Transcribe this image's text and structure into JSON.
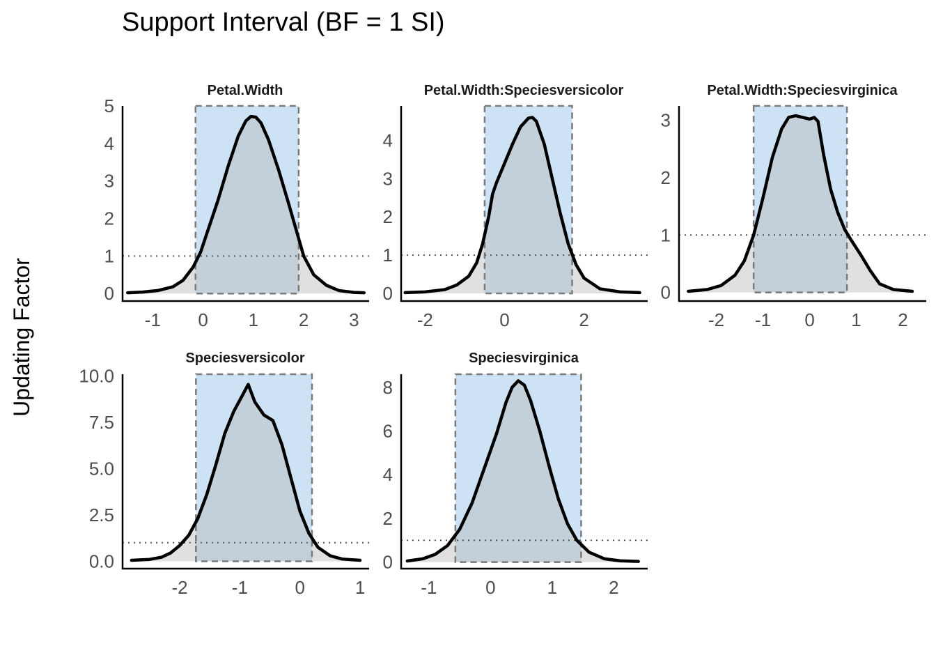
{
  "chart_data": {
    "type": "area",
    "title": "Support Interval (BF = 1 SI)",
    "ylabel": "Updating Factor",
    "xlabel": "",
    "threshold": 1,
    "colors": {
      "interval_fill": "#cde3f5",
      "interval_border": "#7a7a7a",
      "under_curve_fill": "#b4b4b4",
      "curve": "#000000",
      "threshold_line": "#555555"
    },
    "panels": [
      {
        "title": "Petal.Width",
        "xlim": [
          -1.6,
          3.3
        ],
        "ylim": [
          -0.2,
          5.0
        ],
        "xticks": [
          -1,
          0,
          1,
          2,
          3
        ],
        "yticks": [
          0,
          1,
          2,
          3,
          4,
          5
        ],
        "ytick_labels": [
          "0",
          "1",
          "2",
          "3",
          "4",
          "5"
        ],
        "interval": [
          -0.15,
          1.9
        ],
        "curve": [
          [
            -1.5,
            0.02
          ],
          [
            -1.2,
            0.04
          ],
          [
            -0.9,
            0.08
          ],
          [
            -0.6,
            0.18
          ],
          [
            -0.4,
            0.35
          ],
          [
            -0.2,
            0.7
          ],
          [
            -0.05,
            1.1
          ],
          [
            0.1,
            1.7
          ],
          [
            0.3,
            2.5
          ],
          [
            0.5,
            3.4
          ],
          [
            0.7,
            4.2
          ],
          [
            0.85,
            4.6
          ],
          [
            0.95,
            4.72
          ],
          [
            1.05,
            4.7
          ],
          [
            1.15,
            4.55
          ],
          [
            1.3,
            4.1
          ],
          [
            1.5,
            3.3
          ],
          [
            1.7,
            2.4
          ],
          [
            1.85,
            1.7
          ],
          [
            2.0,
            1.0
          ],
          [
            2.2,
            0.5
          ],
          [
            2.45,
            0.22
          ],
          [
            2.7,
            0.08
          ],
          [
            3.0,
            0.03
          ],
          [
            3.2,
            0.02
          ]
        ]
      },
      {
        "title": "Petal.Width:Speciesversicolor",
        "xlim": [
          -2.6,
          3.6
        ],
        "ylim": [
          -0.2,
          4.9
        ],
        "xticks": [
          -2,
          0,
          2
        ],
        "yticks": [
          0,
          1,
          2,
          3,
          4
        ],
        "ytick_labels": [
          "0",
          "1",
          "2",
          "3",
          "4"
        ],
        "interval": [
          -0.5,
          1.7
        ],
        "curve": [
          [
            -2.5,
            0.02
          ],
          [
            -2.0,
            0.04
          ],
          [
            -1.5,
            0.1
          ],
          [
            -1.2,
            0.22
          ],
          [
            -0.9,
            0.45
          ],
          [
            -0.7,
            0.8
          ],
          [
            -0.55,
            1.3
          ],
          [
            -0.4,
            2.0
          ],
          [
            -0.3,
            2.6
          ],
          [
            -0.2,
            2.9
          ],
          [
            0.0,
            3.4
          ],
          [
            0.2,
            3.9
          ],
          [
            0.4,
            4.35
          ],
          [
            0.6,
            4.58
          ],
          [
            0.7,
            4.6
          ],
          [
            0.8,
            4.5
          ],
          [
            1.0,
            3.9
          ],
          [
            1.2,
            3.0
          ],
          [
            1.4,
            2.1
          ],
          [
            1.6,
            1.3
          ],
          [
            1.8,
            0.75
          ],
          [
            2.0,
            0.4
          ],
          [
            2.4,
            0.12
          ],
          [
            2.9,
            0.04
          ],
          [
            3.4,
            0.02
          ]
        ]
      },
      {
        "title": "Petal.Width:Speciesvirginica",
        "xlim": [
          -2.8,
          2.5
        ],
        "ylim": [
          -0.15,
          3.25
        ],
        "xticks": [
          -2,
          -1,
          0,
          1,
          2
        ],
        "yticks": [
          0,
          1,
          2,
          3
        ],
        "ytick_labels": [
          "0",
          "1",
          "2",
          "3"
        ],
        "interval": [
          -1.2,
          0.8
        ],
        "curve": [
          [
            -2.6,
            0.02
          ],
          [
            -2.2,
            0.05
          ],
          [
            -1.9,
            0.12
          ],
          [
            -1.6,
            0.3
          ],
          [
            -1.4,
            0.55
          ],
          [
            -1.2,
            1.0
          ],
          [
            -1.0,
            1.65
          ],
          [
            -0.8,
            2.35
          ],
          [
            -0.6,
            2.85
          ],
          [
            -0.45,
            3.05
          ],
          [
            -0.3,
            3.08
          ],
          [
            -0.15,
            3.05
          ],
          [
            0.0,
            3.02
          ],
          [
            0.1,
            3.05
          ],
          [
            0.18,
            2.98
          ],
          [
            0.3,
            2.4
          ],
          [
            0.45,
            1.8
          ],
          [
            0.6,
            1.4
          ],
          [
            0.75,
            1.1
          ],
          [
            0.9,
            0.9
          ],
          [
            1.1,
            0.65
          ],
          [
            1.3,
            0.38
          ],
          [
            1.5,
            0.15
          ],
          [
            1.8,
            0.05
          ],
          [
            2.2,
            0.02
          ]
        ]
      },
      {
        "title": "Speciesversicolor",
        "xlim": [
          -2.95,
          1.15
        ],
        "ylim": [
          -0.4,
          10.1
        ],
        "xticks": [
          -2,
          -1,
          0,
          1
        ],
        "yticks": [
          0,
          2.5,
          5,
          7.5,
          10
        ],
        "ytick_labels": [
          "0.0",
          "2.5",
          "5.0",
          "7.5",
          "10.0"
        ],
        "interval": [
          -1.73,
          0.2
        ],
        "curve": [
          [
            -2.8,
            0.05
          ],
          [
            -2.5,
            0.1
          ],
          [
            -2.3,
            0.22
          ],
          [
            -2.15,
            0.45
          ],
          [
            -2.0,
            0.85
          ],
          [
            -1.85,
            1.4
          ],
          [
            -1.7,
            2.3
          ],
          [
            -1.55,
            3.6
          ],
          [
            -1.4,
            5.2
          ],
          [
            -1.25,
            6.9
          ],
          [
            -1.1,
            8.1
          ],
          [
            -0.95,
            9.0
          ],
          [
            -0.86,
            9.55
          ],
          [
            -0.75,
            8.6
          ],
          [
            -0.6,
            7.9
          ],
          [
            -0.45,
            7.6
          ],
          [
            -0.3,
            6.3
          ],
          [
            -0.15,
            4.5
          ],
          [
            0.0,
            2.7
          ],
          [
            0.15,
            1.5
          ],
          [
            0.3,
            0.75
          ],
          [
            0.5,
            0.3
          ],
          [
            0.7,
            0.12
          ],
          [
            1.0,
            0.05
          ]
        ]
      },
      {
        "title": "Speciesvirginica",
        "xlim": [
          -1.45,
          2.55
        ],
        "ylim": [
          -0.3,
          8.6
        ],
        "xticks": [
          -1,
          0,
          1,
          2
        ],
        "yticks": [
          0,
          2,
          4,
          6,
          8
        ],
        "ytick_labels": [
          "0",
          "2",
          "4",
          "6",
          "8"
        ],
        "interval": [
          -0.57,
          1.47
        ],
        "curve": [
          [
            -1.35,
            0.05
          ],
          [
            -1.1,
            0.15
          ],
          [
            -0.9,
            0.35
          ],
          [
            -0.7,
            0.75
          ],
          [
            -0.5,
            1.5
          ],
          [
            -0.3,
            2.7
          ],
          [
            -0.1,
            4.3
          ],
          [
            0.1,
            5.9
          ],
          [
            0.25,
            7.3
          ],
          [
            0.35,
            8.0
          ],
          [
            0.45,
            8.3
          ],
          [
            0.55,
            8.1
          ],
          [
            0.65,
            7.4
          ],
          [
            0.8,
            6.0
          ],
          [
            0.95,
            4.4
          ],
          [
            1.1,
            2.9
          ],
          [
            1.25,
            1.75
          ],
          [
            1.4,
            1.0
          ],
          [
            1.6,
            0.45
          ],
          [
            1.85,
            0.15
          ],
          [
            2.1,
            0.06
          ],
          [
            2.4,
            0.03
          ]
        ]
      }
    ]
  }
}
